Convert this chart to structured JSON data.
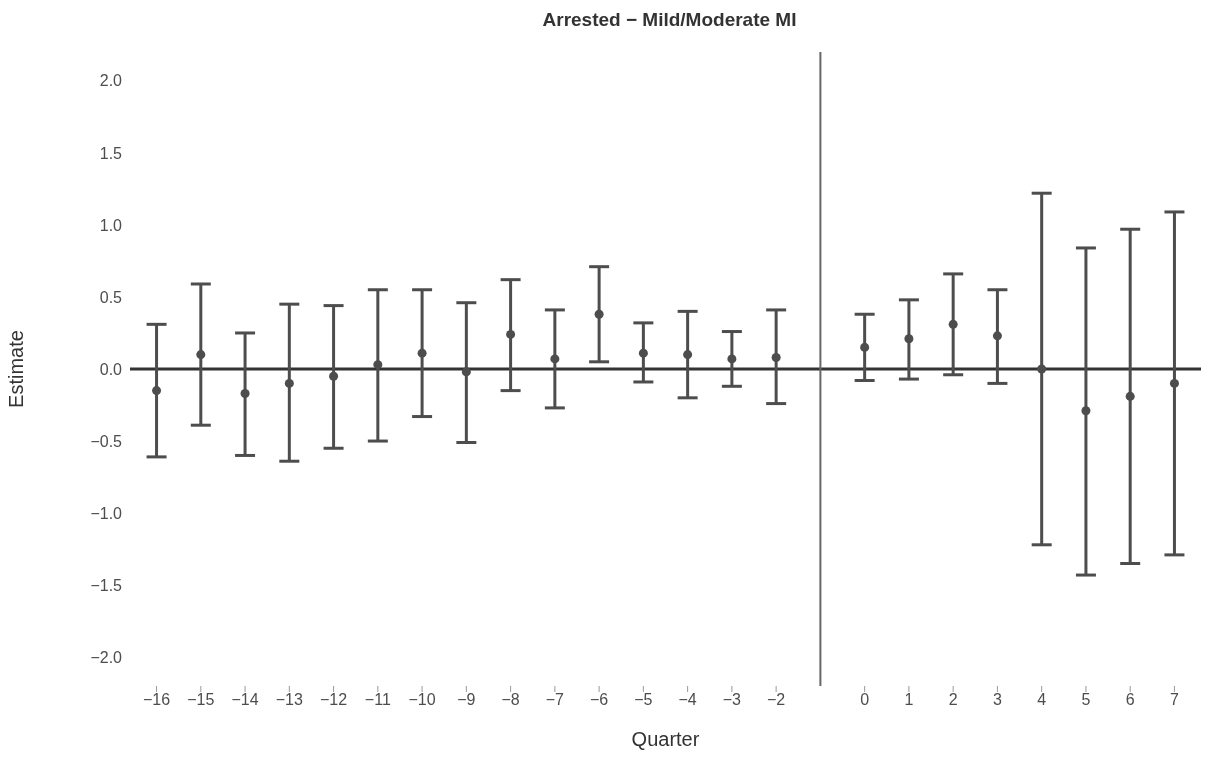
{
  "chart_data": {
    "type": "scatter",
    "title": "Arrested − Mild/Moderate MI",
    "xlabel": "Quarter",
    "ylabel": "Estimate",
    "x": [
      -16,
      -15,
      -14,
      -13,
      -12,
      -11,
      -10,
      -9,
      -8,
      -7,
      -6,
      -5,
      -4,
      -3,
      -2,
      0,
      1,
      2,
      3,
      4,
      5,
      6,
      7
    ],
    "series": [
      {
        "color": "#4d4d4d",
        "values": [
          -0.15,
          0.1,
          -0.17,
          -0.1,
          -0.05,
          0.03,
          0.11,
          -0.02,
          0.24,
          0.07,
          0.38,
          0.11,
          0.1,
          0.07,
          0.08,
          0.15,
          0.21,
          0.31,
          0.23,
          0.0,
          -0.29,
          -0.19,
          -0.1
        ],
        "errors": [
          [
            -0.61,
            0.31
          ],
          [
            -0.39,
            0.59
          ],
          [
            -0.6,
            0.25
          ],
          [
            -0.64,
            0.45
          ],
          [
            -0.55,
            0.44
          ],
          [
            -0.5,
            0.55
          ],
          [
            -0.33,
            0.55
          ],
          [
            -0.51,
            0.46
          ],
          [
            -0.15,
            0.62
          ],
          [
            -0.27,
            0.41
          ],
          [
            0.05,
            0.71
          ],
          [
            -0.09,
            0.32
          ],
          [
            -0.2,
            0.4
          ],
          [
            -0.12,
            0.26
          ],
          [
            -0.24,
            0.41
          ],
          [
            -0.08,
            0.38
          ],
          [
            -0.07,
            0.48
          ],
          [
            -0.04,
            0.66
          ],
          [
            -0.1,
            0.55
          ],
          [
            -1.22,
            1.22
          ],
          [
            -1.43,
            0.84
          ],
          [
            -1.35,
            0.97
          ],
          [
            -1.29,
            1.09
          ]
        ]
      }
    ],
    "marker": "circle",
    "xlim": [
      -16.6,
      7.6
    ],
    "ylim": [
      -2.2,
      2.2
    ],
    "xticks": [
      {
        "value": -16,
        "label": "−16"
      },
      {
        "value": -15,
        "label": "−15"
      },
      {
        "value": -14,
        "label": "−14"
      },
      {
        "value": -13,
        "label": "−13"
      },
      {
        "value": -12,
        "label": "−12"
      },
      {
        "value": -11,
        "label": "−11"
      },
      {
        "value": -10,
        "label": "−10"
      },
      {
        "value": -9,
        "label": "−9"
      },
      {
        "value": -8,
        "label": "−8"
      },
      {
        "value": -7,
        "label": "−7"
      },
      {
        "value": -6,
        "label": "−6"
      },
      {
        "value": -5,
        "label": "−5"
      },
      {
        "value": -4,
        "label": "−4"
      },
      {
        "value": -3,
        "label": "−3"
      },
      {
        "value": -2,
        "label": "−2"
      },
      0,
      1,
      2,
      3,
      4,
      5,
      6,
      7
    ],
    "yticks": [
      {
        "value": -2,
        "label": "−2.0"
      },
      {
        "value": -1.5,
        "label": "−1.5"
      },
      {
        "value": -1,
        "label": "−1.0"
      },
      {
        "value": -0.5,
        "label": "−0.5"
      },
      {
        "value": 0,
        "label": "0.0"
      },
      {
        "value": 0.5,
        "label": "0.5"
      },
      {
        "value": 1,
        "label": "1.0"
      },
      {
        "value": 1.5,
        "label": "1.5"
      },
      {
        "value": 2,
        "label": "2.0"
      }
    ],
    "ref_lines": [
      {
        "axis": "y",
        "value": 0,
        "color": "#333333"
      },
      {
        "axis": "x",
        "value": -1,
        "color": "#666666"
      }
    ]
  }
}
